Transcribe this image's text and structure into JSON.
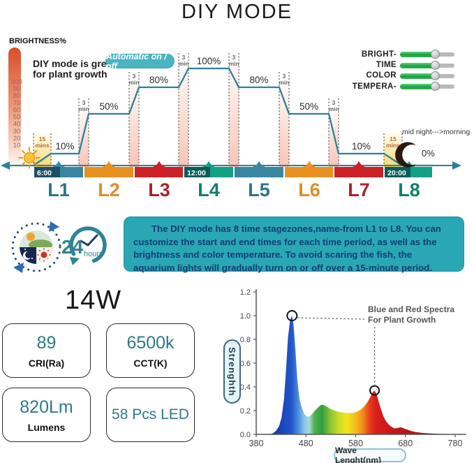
{
  "page": {
    "title": "DIY MODE"
  },
  "schedule": {
    "axis_label": "BRIGHTNESS%",
    "tagline_line1": "DIY mode is great",
    "tagline_line2": "for plant growth",
    "badge": "Automatic on / off",
    "sliders": [
      "BRIGHT-",
      "TIME",
      "COLOR",
      "TEMPERA-"
    ],
    "night_note": "mid night--->morning",
    "transition_label": [
      "3",
      "min"
    ],
    "ramp_label": [
      "15",
      "mins"
    ],
    "icons": [
      "sun-icon",
      "moon-icon"
    ],
    "accent_color": "#2d8195"
  },
  "info": {
    "text": "The DIY mode has 8 time stagezones,name-from L1 to L8. You can customize the start and end times for each time period, as well as the brightness and color temperature. To avoid scaring the fish, the aquarium lights will gradually turn on or off over a 15-minute period.",
    "clock_number": "24",
    "clock_unit": "hours",
    "icons": [
      "day-night-cycle-icon",
      "24-hours-clock-icon"
    ]
  },
  "specs": {
    "wattage": "14W",
    "boxes": [
      {
        "value": "89",
        "label": "CRI(Ra)"
      },
      {
        "value": "6500k",
        "label": "CCT(K)"
      },
      {
        "value": "820Lm",
        "label": "Lumens"
      },
      {
        "value": "58 Pcs LED",
        "label": ""
      }
    ]
  },
  "chart_data": [
    {
      "type": "line",
      "subtype": "step-schedule",
      "categories": [
        "L1",
        "L2",
        "L3",
        "L4",
        "L5",
        "L6",
        "L7",
        "L8"
      ],
      "values": [
        10,
        50,
        80,
        100,
        80,
        50,
        10,
        0
      ],
      "value_labels": [
        "10%",
        "50%",
        "80%",
        "100%",
        "80%",
        "50%",
        "10%",
        "0%"
      ],
      "ylabel": "BRIGHTNESS%",
      "y_ticks": [
        100,
        90,
        80,
        70,
        60,
        50,
        40,
        30,
        20,
        10
      ],
      "ylim": [
        0,
        100
      ],
      "time_marks": [
        {
          "stage_index": 0,
          "time": "6:00"
        },
        {
          "stage_index": 3,
          "time": "12:00"
        },
        {
          "stage_index": 7,
          "time": "20:00"
        }
      ],
      "transition_between_stages": "3 min",
      "dawn_dusk_ramp": "15 mins",
      "segment_colors": [
        "#3a86a0",
        "#e89120",
        "#cb2127",
        "#12a183",
        "#3a86a0",
        "#e89120",
        "#cb2127",
        "#12a183"
      ],
      "label_colors": [
        "#2d7389",
        "#de8d28",
        "#aa2328",
        "#11806b",
        "#2d7389",
        "#de8d28",
        "#aa2328",
        "#11806b"
      ]
    },
    {
      "type": "area",
      "subtype": "led-spectrum",
      "xlabel": "Wave Lenght(nm)",
      "ylabel": "Strenghth",
      "x_ticks": [
        380,
        480,
        580,
        680,
        780
      ],
      "y_tick_labels": [
        "0.0",
        "0.2",
        "0.4",
        "0.6",
        "0.8",
        "1.0",
        "1.2"
      ],
      "xlim": [
        380,
        780
      ],
      "ylim": [
        0,
        1.2
      ],
      "annotation": {
        "line1": "Blue and Red Spectra",
        "line2": "For Plant Growth"
      },
      "marked_peaks": [
        {
          "x": 452,
          "y": 1.0
        },
        {
          "x": 618,
          "y": 0.37
        }
      ],
      "points": [
        [
          408,
          0
        ],
        [
          414,
          0.01
        ],
        [
          420,
          0.03
        ],
        [
          426,
          0.07
        ],
        [
          431,
          0.14
        ],
        [
          436,
          0.3
        ],
        [
          440,
          0.55
        ],
        [
          444,
          0.82
        ],
        [
          448,
          0.96
        ],
        [
          452,
          1.0
        ],
        [
          455,
          0.93
        ],
        [
          459,
          0.7
        ],
        [
          463,
          0.45
        ],
        [
          467,
          0.3
        ],
        [
          472,
          0.22
        ],
        [
          477,
          0.17
        ],
        [
          482,
          0.15
        ],
        [
          487,
          0.15
        ],
        [
          492,
          0.17
        ],
        [
          498,
          0.2
        ],
        [
          505,
          0.23
        ],
        [
          511,
          0.25
        ],
        [
          517,
          0.245
        ],
        [
          523,
          0.23
        ],
        [
          531,
          0.21
        ],
        [
          541,
          0.195
        ],
        [
          552,
          0.185
        ],
        [
          563,
          0.18
        ],
        [
          573,
          0.18
        ],
        [
          582,
          0.19
        ],
        [
          591,
          0.21
        ],
        [
          598,
          0.24
        ],
        [
          605,
          0.28
        ],
        [
          610,
          0.32
        ],
        [
          614,
          0.355
        ],
        [
          618,
          0.37
        ],
        [
          622,
          0.34
        ],
        [
          626,
          0.28
        ],
        [
          631,
          0.21
        ],
        [
          636,
          0.15
        ],
        [
          641,
          0.11
        ],
        [
          647,
          0.08
        ],
        [
          653,
          0.06
        ],
        [
          659,
          0.05
        ],
        [
          665,
          0.055
        ],
        [
          671,
          0.06
        ],
        [
          677,
          0.05
        ],
        [
          684,
          0.04
        ],
        [
          692,
          0.028
        ],
        [
          702,
          0.018
        ],
        [
          716,
          0.012
        ],
        [
          734,
          0.007
        ],
        [
          756,
          0.003
        ],
        [
          778,
          0.001
        ],
        [
          780,
          0
        ]
      ]
    }
  ]
}
